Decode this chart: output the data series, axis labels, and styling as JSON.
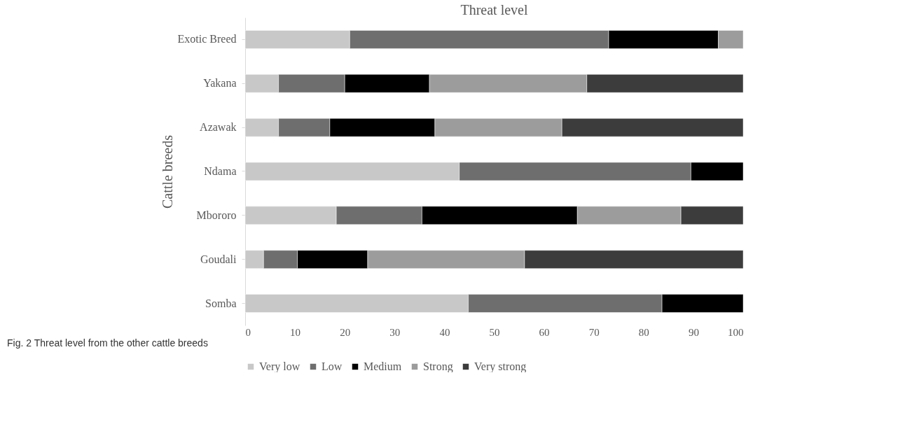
{
  "chart_data": {
    "type": "bar",
    "orientation": "horizontal",
    "stacked": true,
    "title": "Threat level",
    "ylabel": "Cattle breeds",
    "categories": [
      "Exotic Breed",
      "Yakana",
      "Azawak",
      "Ndama",
      "Mbororo",
      "Goudali",
      "Somba"
    ],
    "series": [
      {
        "name": "Very low",
        "color": "#c8c8c8",
        "values": [
          21,
          6.7,
          6.7,
          43,
          18.3,
          3.7,
          44.8
        ]
      },
      {
        "name": "Low",
        "color": "#6e6e6e",
        "values": [
          52,
          13.3,
          10.3,
          46.5,
          17.2,
          6.8,
          38.9
        ]
      },
      {
        "name": "Medium",
        "color": "#000000",
        "values": [
          22,
          17,
          21.1,
          10.5,
          31.2,
          14.1,
          16.3
        ]
      },
      {
        "name": "Strong",
        "color": "#9c9c9c",
        "values": [
          5,
          31.6,
          25.5,
          null,
          20.8,
          31.5,
          null
        ]
      },
      {
        "name": "Very strong",
        "color": "#3c3c3c",
        "values": [
          null,
          31.4,
          36.4,
          null,
          12.5,
          43.9,
          null
        ]
      }
    ],
    "xlim": [
      0,
      100
    ],
    "xticks": [
      0,
      10,
      20,
      30,
      40,
      50,
      60,
      70,
      80,
      90,
      100
    ],
    "grid": false,
    "legend": "bottom",
    "annotations": [
      "Fig. 2 Threat level from the other cattle breeds"
    ]
  }
}
